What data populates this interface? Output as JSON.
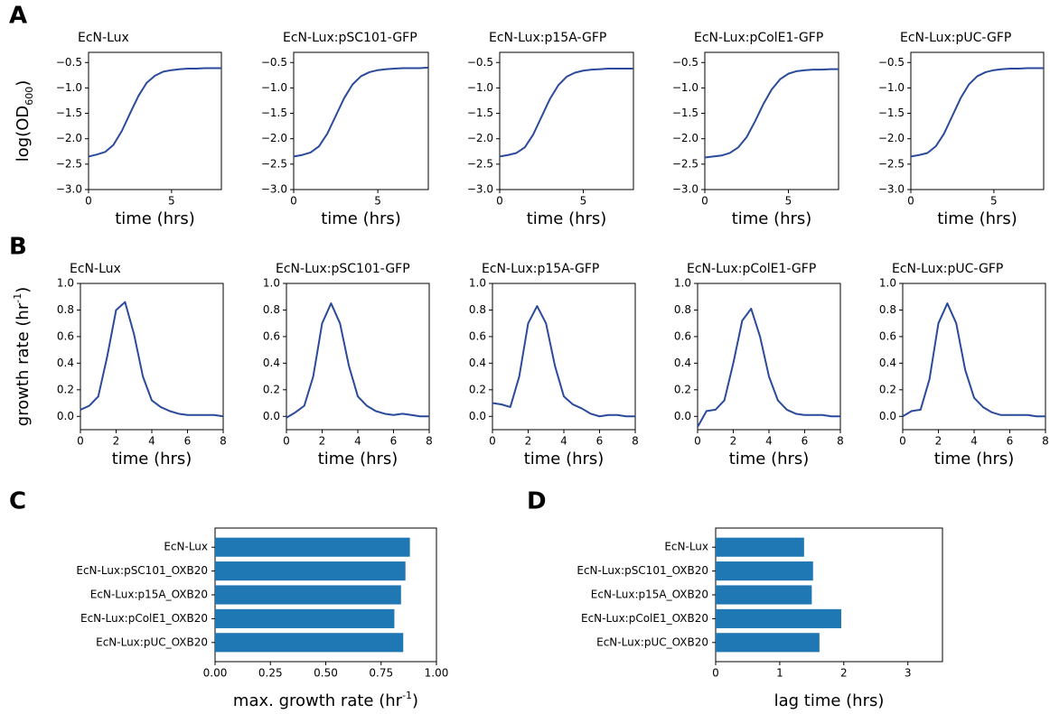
{
  "panel_labels": [
    "A",
    "B",
    "C",
    "D"
  ],
  "chart_data": [
    {
      "type": "line",
      "title": "EcN-Lux",
      "xlabel": "time (hrs)",
      "ylabel": [
        "log(OD",
        "600",
        ")"
      ],
      "color": "#2b4a9b",
      "x": [
        0,
        0.5,
        1,
        1.5,
        2,
        2.5,
        3,
        3.5,
        4,
        4.5,
        5,
        5.5,
        6,
        6.5,
        7,
        7.5,
        8
      ],
      "values": [
        -2.35,
        -2.31,
        -2.26,
        -2.12,
        -1.85,
        -1.5,
        -1.16,
        -0.9,
        -0.76,
        -0.68,
        -0.65,
        -0.63,
        -0.62,
        -0.62,
        -0.61,
        -0.61,
        -0.61
      ],
      "xlim": [
        0,
        8
      ],
      "ylim": [
        -3.0,
        -0.3
      ],
      "xticks": [
        0,
        5
      ],
      "yticks": [
        {
          "value": -3,
          "label": "−3.0"
        },
        {
          "value": -2.5,
          "label": "−2.5"
        },
        {
          "value": -2,
          "label": "−2.0"
        },
        {
          "value": -1.5,
          "label": "−1.5"
        },
        {
          "value": -1,
          "label": "−1.0"
        },
        {
          "value": -0.5,
          "label": "−0.5"
        }
      ]
    },
    {
      "type": "line",
      "title": "EcN-Lux:pSC101-GFP",
      "xlabel": "time (hrs)",
      "color": "#2b4a9b",
      "x": [
        0,
        0.5,
        1,
        1.5,
        2,
        2.5,
        3,
        3.5,
        4,
        4.5,
        5,
        5.5,
        6,
        6.5,
        7,
        7.5,
        8
      ],
      "values": [
        -2.35,
        -2.32,
        -2.27,
        -2.15,
        -1.9,
        -1.55,
        -1.2,
        -0.93,
        -0.77,
        -0.69,
        -0.65,
        -0.63,
        -0.62,
        -0.61,
        -0.61,
        -0.61,
        -0.6
      ],
      "xlim": [
        0,
        8
      ],
      "ylim": [
        -3.0,
        -0.3
      ],
      "xticks": [
        0,
        5
      ],
      "yticks": [
        {
          "value": -3,
          "label": "−3.0"
        },
        {
          "value": -2.5,
          "label": "−2.5"
        },
        {
          "value": -2,
          "label": "−2.0"
        },
        {
          "value": -1.5,
          "label": "−1.5"
        },
        {
          "value": -1,
          "label": "−1.0"
        },
        {
          "value": -0.5,
          "label": "−0.5"
        }
      ]
    },
    {
      "type": "line",
      "title": "EcN-Lux:p15A-GFP",
      "xlabel": "time (hrs)",
      "color": "#2b4a9b",
      "x": [
        0,
        0.5,
        1,
        1.5,
        2,
        2.5,
        3,
        3.5,
        4,
        4.5,
        5,
        5.5,
        6,
        6.5,
        7,
        7.5,
        8
      ],
      "values": [
        -2.35,
        -2.32,
        -2.28,
        -2.17,
        -1.92,
        -1.57,
        -1.22,
        -0.95,
        -0.78,
        -0.7,
        -0.66,
        -0.64,
        -0.63,
        -0.62,
        -0.62,
        -0.62,
        -0.62
      ],
      "xlim": [
        0,
        8
      ],
      "ylim": [
        -3.0,
        -0.3
      ],
      "xticks": [
        0,
        5
      ],
      "yticks": [
        {
          "value": -3,
          "label": "−3.0"
        },
        {
          "value": -2.5,
          "label": "−2.5"
        },
        {
          "value": -2,
          "label": "−2.0"
        },
        {
          "value": -1.5,
          "label": "−1.5"
        },
        {
          "value": -1,
          "label": "−1.0"
        },
        {
          "value": -0.5,
          "label": "−0.5"
        }
      ]
    },
    {
      "type": "line",
      "title": "EcN-Lux:pColE1-GFP",
      "xlabel": "time (hrs)",
      "color": "#2b4a9b",
      "x": [
        0,
        0.5,
        1,
        1.5,
        2,
        2.5,
        3,
        3.5,
        4,
        4.5,
        5,
        5.5,
        6,
        6.5,
        7,
        7.5,
        8
      ],
      "values": [
        -2.37,
        -2.35,
        -2.33,
        -2.28,
        -2.17,
        -1.97,
        -1.66,
        -1.32,
        -1.03,
        -0.83,
        -0.72,
        -0.67,
        -0.65,
        -0.64,
        -0.64,
        -0.63,
        -0.63
      ],
      "xlim": [
        0,
        8
      ],
      "ylim": [
        -3.0,
        -0.3
      ],
      "xticks": [
        0,
        5
      ],
      "yticks": [
        {
          "value": -3,
          "label": "−3.0"
        },
        {
          "value": -2.5,
          "label": "−2.5"
        },
        {
          "value": -2,
          "label": "−2.0"
        },
        {
          "value": -1.5,
          "label": "−1.5"
        },
        {
          "value": -1,
          "label": "−1.0"
        },
        {
          "value": -0.5,
          "label": "−0.5"
        }
      ]
    },
    {
      "type": "line",
      "title": "EcN-Lux:pUC-GFP",
      "xlabel": "time (hrs)",
      "color": "#2b4a9b",
      "x": [
        0,
        0.5,
        1,
        1.5,
        2,
        2.5,
        3,
        3.5,
        4,
        4.5,
        5,
        5.5,
        6,
        6.5,
        7,
        7.5,
        8
      ],
      "values": [
        -2.35,
        -2.32,
        -2.28,
        -2.15,
        -1.9,
        -1.55,
        -1.2,
        -0.93,
        -0.77,
        -0.69,
        -0.65,
        -0.63,
        -0.62,
        -0.62,
        -0.61,
        -0.61,
        -0.61
      ],
      "xlim": [
        0,
        8
      ],
      "ylim": [
        -3.0,
        -0.3
      ],
      "xticks": [
        0,
        5
      ],
      "yticks": [
        {
          "value": -3,
          "label": "−3.0"
        },
        {
          "value": -2.5,
          "label": "−2.5"
        },
        {
          "value": -2,
          "label": "−2.0"
        },
        {
          "value": -1.5,
          "label": "−1.5"
        },
        {
          "value": -1,
          "label": "−1.0"
        },
        {
          "value": -0.5,
          "label": "−0.5"
        }
      ]
    },
    {
      "type": "line",
      "title": "EcN-Lux",
      "xlabel": "time (hrs)",
      "ylabel": [
        "growth rate (hr",
        "-1",
        ")"
      ],
      "color": "#2b4a9b",
      "x": [
        0,
        0.5,
        1,
        1.5,
        2,
        2.5,
        3,
        3.5,
        4,
        4.5,
        5,
        5.5,
        6,
        6.5,
        7,
        7.5,
        8
      ],
      "values": [
        0.05,
        0.08,
        0.15,
        0.45,
        0.8,
        0.86,
        0.62,
        0.3,
        0.12,
        0.07,
        0.04,
        0.02,
        0.01,
        0.01,
        0.01,
        0.01,
        0.0
      ],
      "xlim": [
        0,
        8
      ],
      "ylim": [
        -0.1,
        1.0
      ],
      "xticks": [
        0,
        2,
        4,
        6,
        8
      ],
      "yticks": [
        {
          "value": 0,
          "label": "0.0"
        },
        0.2,
        0.4,
        0.6,
        0.8,
        {
          "value": 1,
          "label": "1.0"
        }
      ]
    },
    {
      "type": "line",
      "title": "EcN-Lux:pSC101-GFP",
      "xlabel": "time (hrs)",
      "color": "#2b4a9b",
      "x": [
        0,
        0.5,
        1,
        1.5,
        2,
        2.5,
        3,
        3.5,
        4,
        4.5,
        5,
        5.5,
        6,
        6.5,
        7,
        7.5,
        8
      ],
      "values": [
        -0.01,
        0.03,
        0.08,
        0.3,
        0.7,
        0.85,
        0.7,
        0.38,
        0.15,
        0.08,
        0.04,
        0.02,
        0.01,
        0.02,
        0.01,
        0.0,
        0.0
      ],
      "xlim": [
        0,
        8
      ],
      "ylim": [
        -0.1,
        1.0
      ],
      "xticks": [
        0,
        2,
        4,
        6,
        8
      ],
      "yticks": [
        {
          "value": 0,
          "label": "0.0"
        },
        0.2,
        0.4,
        0.6,
        0.8,
        {
          "value": 1,
          "label": "1.0"
        }
      ]
    },
    {
      "type": "line",
      "title": "EcN-Lux:p15A-GFP",
      "xlabel": "time (hrs)",
      "color": "#2b4a9b",
      "x": [
        0,
        0.5,
        1,
        1.5,
        2,
        2.5,
        3,
        3.5,
        4,
        4.5,
        5,
        5.5,
        6,
        6.5,
        7,
        7.5,
        8
      ],
      "values": [
        0.1,
        0.09,
        0.07,
        0.3,
        0.7,
        0.83,
        0.7,
        0.38,
        0.15,
        0.09,
        0.06,
        0.02,
        0.0,
        0.01,
        0.01,
        0.0,
        0.0
      ],
      "xlim": [
        0,
        8
      ],
      "ylim": [
        -0.1,
        1.0
      ],
      "xticks": [
        0,
        2,
        4,
        6,
        8
      ],
      "yticks": [
        {
          "value": 0,
          "label": "0.0"
        },
        0.2,
        0.4,
        0.6,
        0.8,
        {
          "value": 1,
          "label": "1.0"
        }
      ]
    },
    {
      "type": "line",
      "title": "EcN-Lux:pColE1-GFP",
      "xlabel": "time (hrs)",
      "color": "#2b4a9b",
      "x": [
        0,
        0.5,
        1,
        1.5,
        2,
        2.5,
        3,
        3.5,
        4,
        4.5,
        5,
        5.5,
        6,
        6.5,
        7,
        7.5,
        8
      ],
      "values": [
        -0.08,
        0.04,
        0.05,
        0.12,
        0.4,
        0.72,
        0.81,
        0.6,
        0.3,
        0.12,
        0.05,
        0.02,
        0.01,
        0.01,
        0.01,
        0.0,
        0.0
      ],
      "xlim": [
        0,
        8
      ],
      "ylim": [
        -0.1,
        1.0
      ],
      "xticks": [
        0,
        2,
        4,
        6,
        8
      ],
      "yticks": [
        {
          "value": 0,
          "label": "0.0"
        },
        0.2,
        0.4,
        0.6,
        0.8,
        {
          "value": 1,
          "label": "1.0"
        }
      ]
    },
    {
      "type": "line",
      "title": "EcN-Lux:pUC-GFP",
      "xlabel": "time (hrs)",
      "color": "#2b4a9b",
      "x": [
        0,
        0.5,
        1,
        1.5,
        2,
        2.5,
        3,
        3.5,
        4,
        4.5,
        5,
        5.5,
        6,
        6.5,
        7,
        7.5,
        8
      ],
      "values": [
        0.0,
        0.04,
        0.05,
        0.28,
        0.7,
        0.85,
        0.7,
        0.35,
        0.14,
        0.07,
        0.03,
        0.01,
        0.01,
        0.01,
        0.01,
        0.0,
        0.0
      ],
      "xlim": [
        0,
        8
      ],
      "ylim": [
        -0.1,
        1.0
      ],
      "xticks": [
        0,
        2,
        4,
        6,
        8
      ],
      "yticks": [
        {
          "value": 0,
          "label": "0.0"
        },
        0.2,
        0.4,
        0.6,
        0.8,
        {
          "value": 1,
          "label": "1.0"
        }
      ]
    },
    {
      "type": "bar",
      "orientation": "horizontal",
      "xlabel": [
        "max. growth rate (hr",
        "-1",
        ")"
      ],
      "color": "#1f77b4",
      "categories": [
        "EcN-Lux",
        "EcN-Lux:pSC101_OXB20",
        "EcN-Lux:p15A_OXB20",
        "EcN-Lux:pColE1_OXB20",
        "EcN-Lux:pUC_OXB20"
      ],
      "values": [
        0.88,
        0.86,
        0.84,
        0.81,
        0.85
      ],
      "xlim": [
        0,
        1.0
      ],
      "xticks": [
        {
          "value": 0,
          "label": "0.00"
        },
        {
          "value": 0.25,
          "label": "0.25"
        },
        {
          "value": 0.5,
          "label": "0.50"
        },
        {
          "value": 0.75,
          "label": "0.75"
        },
        {
          "value": 1,
          "label": "1.00"
        }
      ]
    },
    {
      "type": "bar",
      "orientation": "horizontal",
      "xlabel": [
        "lag time (hrs)"
      ],
      "color": "#1f77b4",
      "categories": [
        "EcN-Lux",
        "EcN-Lux:pSC101_OXB20",
        "EcN-Lux:p15A_OXB20",
        "EcN-Lux:pColE1_OXB20",
        "EcN-Lux:pUC_OXB20"
      ],
      "values": [
        1.38,
        1.52,
        1.5,
        1.96,
        1.62
      ],
      "xlim": [
        0,
        3.54
      ],
      "xticks": [
        0,
        1,
        2,
        3
      ]
    }
  ]
}
